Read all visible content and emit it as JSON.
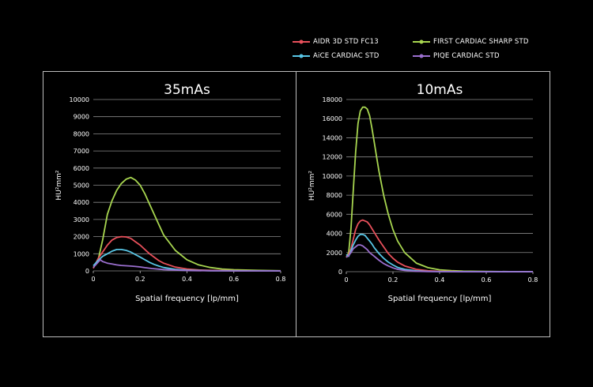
{
  "legend": [
    {
      "label": "AIDR 3D STD FC13",
      "color": "#e8505b"
    },
    {
      "label": "FIRST CARDIAC SHARP STD",
      "color": "#a8d650"
    },
    {
      "label": "AiCE CARDIAC STD",
      "color": "#58c6e6"
    },
    {
      "label": "PIQE CARDIAC STD",
      "color": "#9b6fcf"
    }
  ],
  "chart_data": [
    {
      "type": "line",
      "title": "35mAs",
      "xlabel": "Spatial frequency [lp/mm]",
      "ylabel": "HU²mm²",
      "xlim": [
        0,
        0.8
      ],
      "ylim": [
        0,
        10000
      ],
      "xticks": [
        0,
        0.2,
        0.4,
        0.6,
        0.8
      ],
      "xtick_labels": [
        "0",
        "0.2",
        "0.4",
        "0.6",
        "0.8"
      ],
      "yticks": [
        0,
        1000,
        2000,
        3000,
        4000,
        5000,
        6000,
        7000,
        8000,
        9000,
        10000
      ],
      "series": [
        {
          "name": "FIRST CARDIAC SHARP STD",
          "color": "#a8d650",
          "x": [
            0,
            0.02,
            0.04,
            0.06,
            0.08,
            0.1,
            0.12,
            0.14,
            0.16,
            0.18,
            0.2,
            0.22,
            0.24,
            0.26,
            0.28,
            0.3,
            0.35,
            0.4,
            0.45,
            0.5,
            0.55,
            0.6,
            0.7,
            0.8
          ],
          "y": [
            200,
            600,
            1800,
            3300,
            4100,
            4700,
            5100,
            5350,
            5450,
            5300,
            5000,
            4500,
            3900,
            3300,
            2700,
            2100,
            1200,
            650,
            350,
            200,
            110,
            70,
            30,
            10
          ]
        },
        {
          "name": "AIDR 3D STD FC13",
          "color": "#e8505b",
          "x": [
            0,
            0.02,
            0.04,
            0.06,
            0.08,
            0.1,
            0.12,
            0.14,
            0.16,
            0.18,
            0.2,
            0.22,
            0.24,
            0.26,
            0.28,
            0.3,
            0.35,
            0.4,
            0.45,
            0.5,
            0.6,
            0.7,
            0.8
          ],
          "y": [
            150,
            700,
            1100,
            1500,
            1800,
            1950,
            2000,
            1980,
            1900,
            1700,
            1500,
            1250,
            1000,
            800,
            600,
            450,
            220,
            110,
            55,
            30,
            10,
            5,
            0
          ]
        },
        {
          "name": "AiCE CARDIAC STD",
          "color": "#58c6e6",
          "x": [
            0,
            0.02,
            0.04,
            0.06,
            0.08,
            0.1,
            0.12,
            0.14,
            0.16,
            0.18,
            0.2,
            0.22,
            0.24,
            0.26,
            0.28,
            0.3,
            0.35,
            0.4,
            0.5,
            0.6,
            0.8
          ],
          "y": [
            300,
            600,
            850,
            1000,
            1150,
            1250,
            1250,
            1200,
            1100,
            950,
            800,
            650,
            500,
            380,
            280,
            200,
            90,
            40,
            10,
            5,
            0
          ]
        },
        {
          "name": "PIQE CARDIAC STD",
          "color": "#9b6fcf",
          "x": [
            0,
            0.02,
            0.03,
            0.04,
            0.06,
            0.08,
            0.1,
            0.12,
            0.14,
            0.16,
            0.18,
            0.2,
            0.22,
            0.25,
            0.3,
            0.35,
            0.4,
            0.5,
            0.6,
            0.8
          ],
          "y": [
            200,
            500,
            650,
            550,
            450,
            400,
            350,
            320,
            300,
            280,
            260,
            230,
            190,
            140,
            80,
            45,
            20,
            5,
            0,
            0
          ]
        }
      ]
    },
    {
      "type": "line",
      "title": "10mAs",
      "xlabel": "Spatial frequency [lp/mm]",
      "ylabel": "HU²mm²",
      "xlim": [
        0,
        0.8
      ],
      "ylim": [
        0,
        18000
      ],
      "xticks": [
        0,
        0.2,
        0.4,
        0.6,
        0.8
      ],
      "xtick_labels": [
        "0",
        "0.2",
        "0.4",
        "0.6",
        "0.8"
      ],
      "yticks": [
        0,
        2000,
        4000,
        6000,
        8000,
        10000,
        12000,
        14000,
        16000,
        18000
      ],
      "series": [
        {
          "name": "FIRST CARDIAC SHARP STD",
          "color": "#a8d650",
          "x": [
            0,
            0.01,
            0.02,
            0.03,
            0.04,
            0.05,
            0.06,
            0.07,
            0.08,
            0.09,
            0.1,
            0.11,
            0.12,
            0.13,
            0.14,
            0.16,
            0.18,
            0.2,
            0.22,
            0.25,
            0.3,
            0.35,
            0.4,
            0.45,
            0.5,
            0.6,
            0.7,
            0.8
          ],
          "y": [
            1500,
            2000,
            4500,
            8500,
            12500,
            15500,
            16800,
            17200,
            17200,
            17000,
            16300,
            15000,
            13500,
            12000,
            10500,
            8000,
            6000,
            4400,
            3200,
            2000,
            900,
            420,
            200,
            110,
            60,
            25,
            10,
            5
          ]
        },
        {
          "name": "AIDR 3D STD FC13",
          "color": "#e8505b",
          "x": [
            0,
            0.01,
            0.02,
            0.03,
            0.04,
            0.05,
            0.06,
            0.07,
            0.08,
            0.09,
            0.1,
            0.11,
            0.12,
            0.14,
            0.16,
            0.18,
            0.2,
            0.22,
            0.25,
            0.3,
            0.35,
            0.4,
            0.5,
            0.6,
            0.8
          ],
          "y": [
            1500,
            1800,
            2400,
            3400,
            4400,
            5000,
            5300,
            5400,
            5300,
            5200,
            4900,
            4500,
            4100,
            3300,
            2600,
            1900,
            1400,
            1000,
            600,
            250,
            100,
            40,
            10,
            5,
            0
          ]
        },
        {
          "name": "AiCE CARDIAC STD",
          "color": "#58c6e6",
          "x": [
            0,
            0.01,
            0.02,
            0.03,
            0.04,
            0.05,
            0.06,
            0.07,
            0.08,
            0.09,
            0.1,
            0.11,
            0.12,
            0.14,
            0.16,
            0.18,
            0.2,
            0.22,
            0.25,
            0.3,
            0.35,
            0.4,
            0.5,
            0.8
          ],
          "y": [
            1800,
            1600,
            2200,
            2800,
            3300,
            3700,
            3900,
            3900,
            3800,
            3500,
            3200,
            2900,
            2500,
            1900,
            1400,
            1000,
            700,
            450,
            250,
            90,
            30,
            10,
            5,
            0
          ]
        },
        {
          "name": "PIQE CARDIAC STD",
          "color": "#9b6fcf",
          "x": [
            0,
            0.01,
            0.02,
            0.03,
            0.04,
            0.05,
            0.06,
            0.07,
            0.08,
            0.09,
            0.1,
            0.12,
            0.14,
            0.16,
            0.18,
            0.2,
            0.22,
            0.25,
            0.3,
            0.35,
            0.4,
            0.5,
            0.8
          ],
          "y": [
            1500,
            1700,
            2000,
            2400,
            2600,
            2800,
            2800,
            2700,
            2500,
            2300,
            2000,
            1600,
            1200,
            850,
            600,
            400,
            250,
            130,
            40,
            15,
            5,
            0,
            0
          ]
        }
      ]
    }
  ]
}
